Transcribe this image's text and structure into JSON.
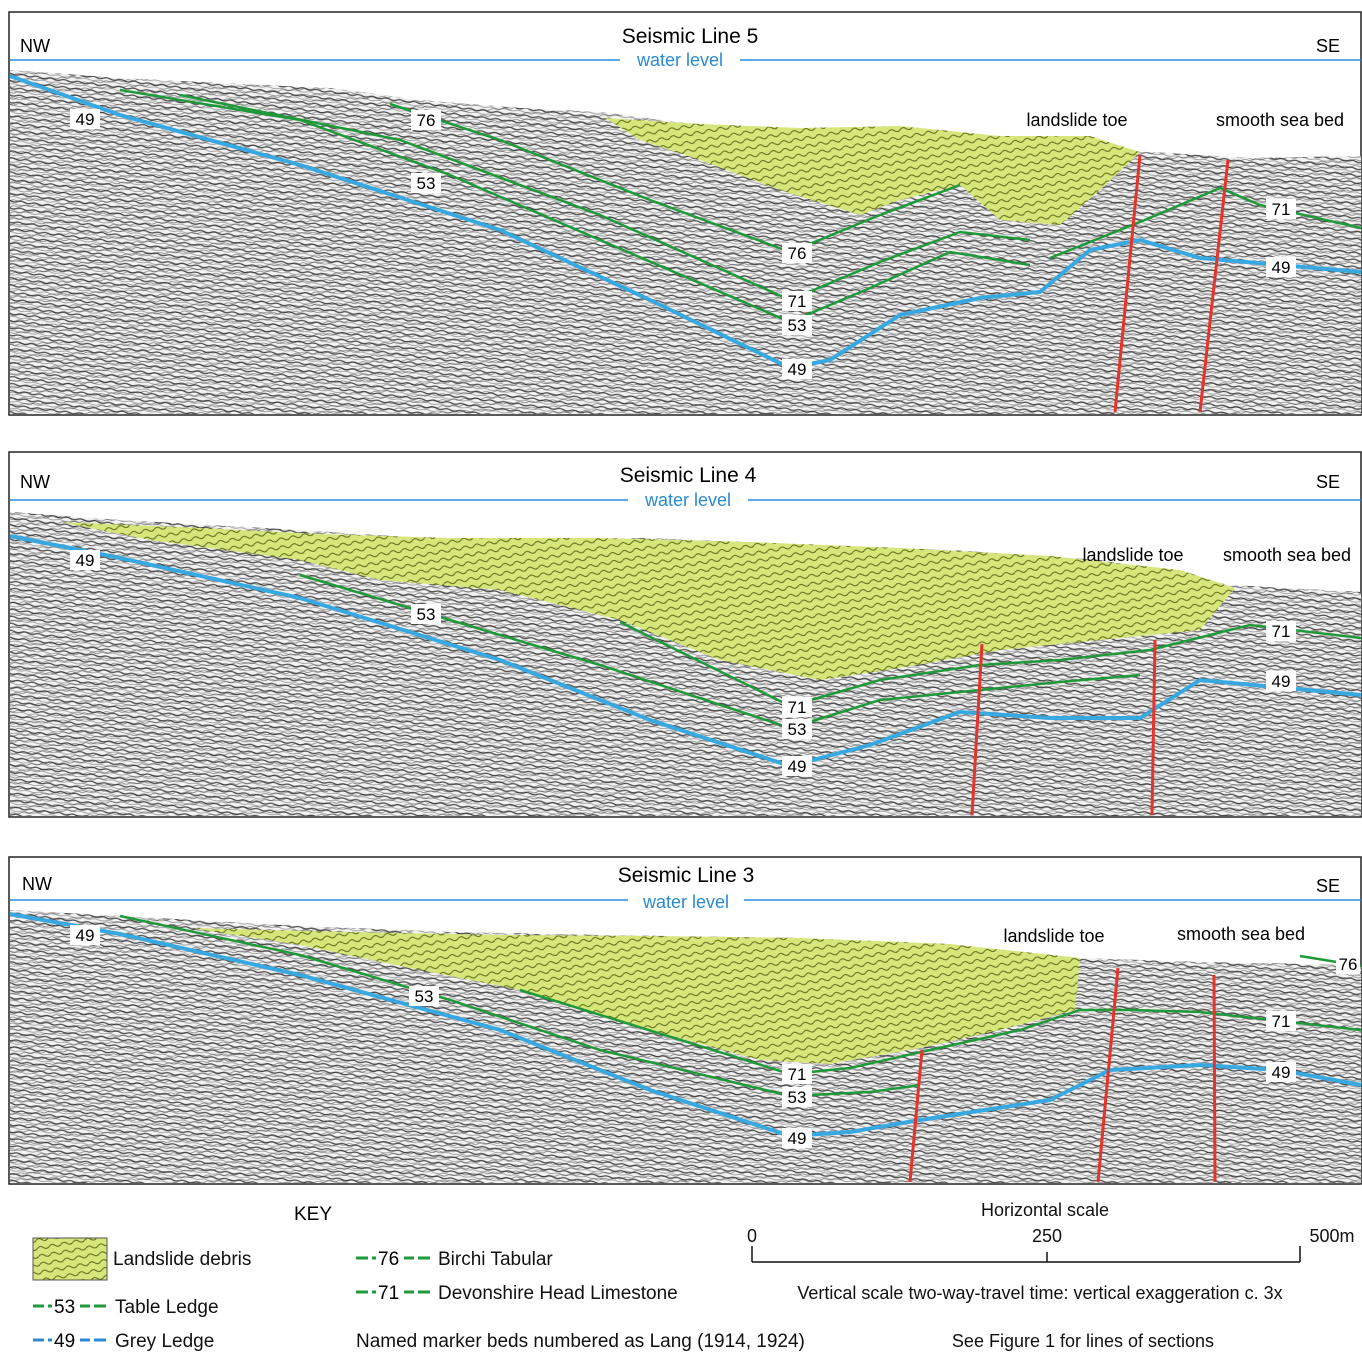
{
  "panels": [
    {
      "title": "Seismic Line 5",
      "left": "NW",
      "right": "SE",
      "water": "water level",
      "notes": [
        "landslide toe",
        "smooth sea bed"
      ],
      "labels": [
        "49",
        "76",
        "53",
        "76",
        "71",
        "53",
        "49",
        "71",
        "49"
      ]
    },
    {
      "title": "Seismic Line 4",
      "left": "NW",
      "right": "SE",
      "water": "water level",
      "notes": [
        "landslide toe",
        "smooth sea bed"
      ],
      "labels": [
        "49",
        "53",
        "71",
        "53",
        "49",
        "71",
        "49"
      ]
    },
    {
      "title": "Seismic Line 3",
      "left": "NW",
      "right": "SE",
      "water": "water level",
      "notes": [
        "landslide toe",
        "smooth sea bed"
      ],
      "labels": [
        "49",
        "53",
        "71",
        "53",
        "49",
        "76",
        "71",
        "49"
      ]
    }
  ],
  "key": {
    "title": "KEY",
    "debris": "Landslide debris",
    "items": [
      {
        "num": "53",
        "name": "Table Ledge"
      },
      {
        "num": "49",
        "name": "Grey Ledge"
      },
      {
        "num": "76",
        "name": "Birchi Tabular"
      },
      {
        "num": "71",
        "name": "Devonshire Head Limestone"
      }
    ],
    "named_markers": "Named marker beds numbered as Lang (1914, 1924)"
  },
  "scale": {
    "title": "Horizontal scale",
    "ticks": [
      "0",
      "250",
      "500m"
    ],
    "vertical": "Vertical scale two-way-travel time: vertical exaggeration c. 3x",
    "see": "See Figure 1 for lines of sections"
  },
  "colors": {
    "water": "#2a8ad6",
    "grey_ledge": "#38a8e0",
    "green_beds": "#1f9a3a",
    "faults": "#e8332a",
    "debris": "#d7e67a",
    "frame": "#222222"
  }
}
